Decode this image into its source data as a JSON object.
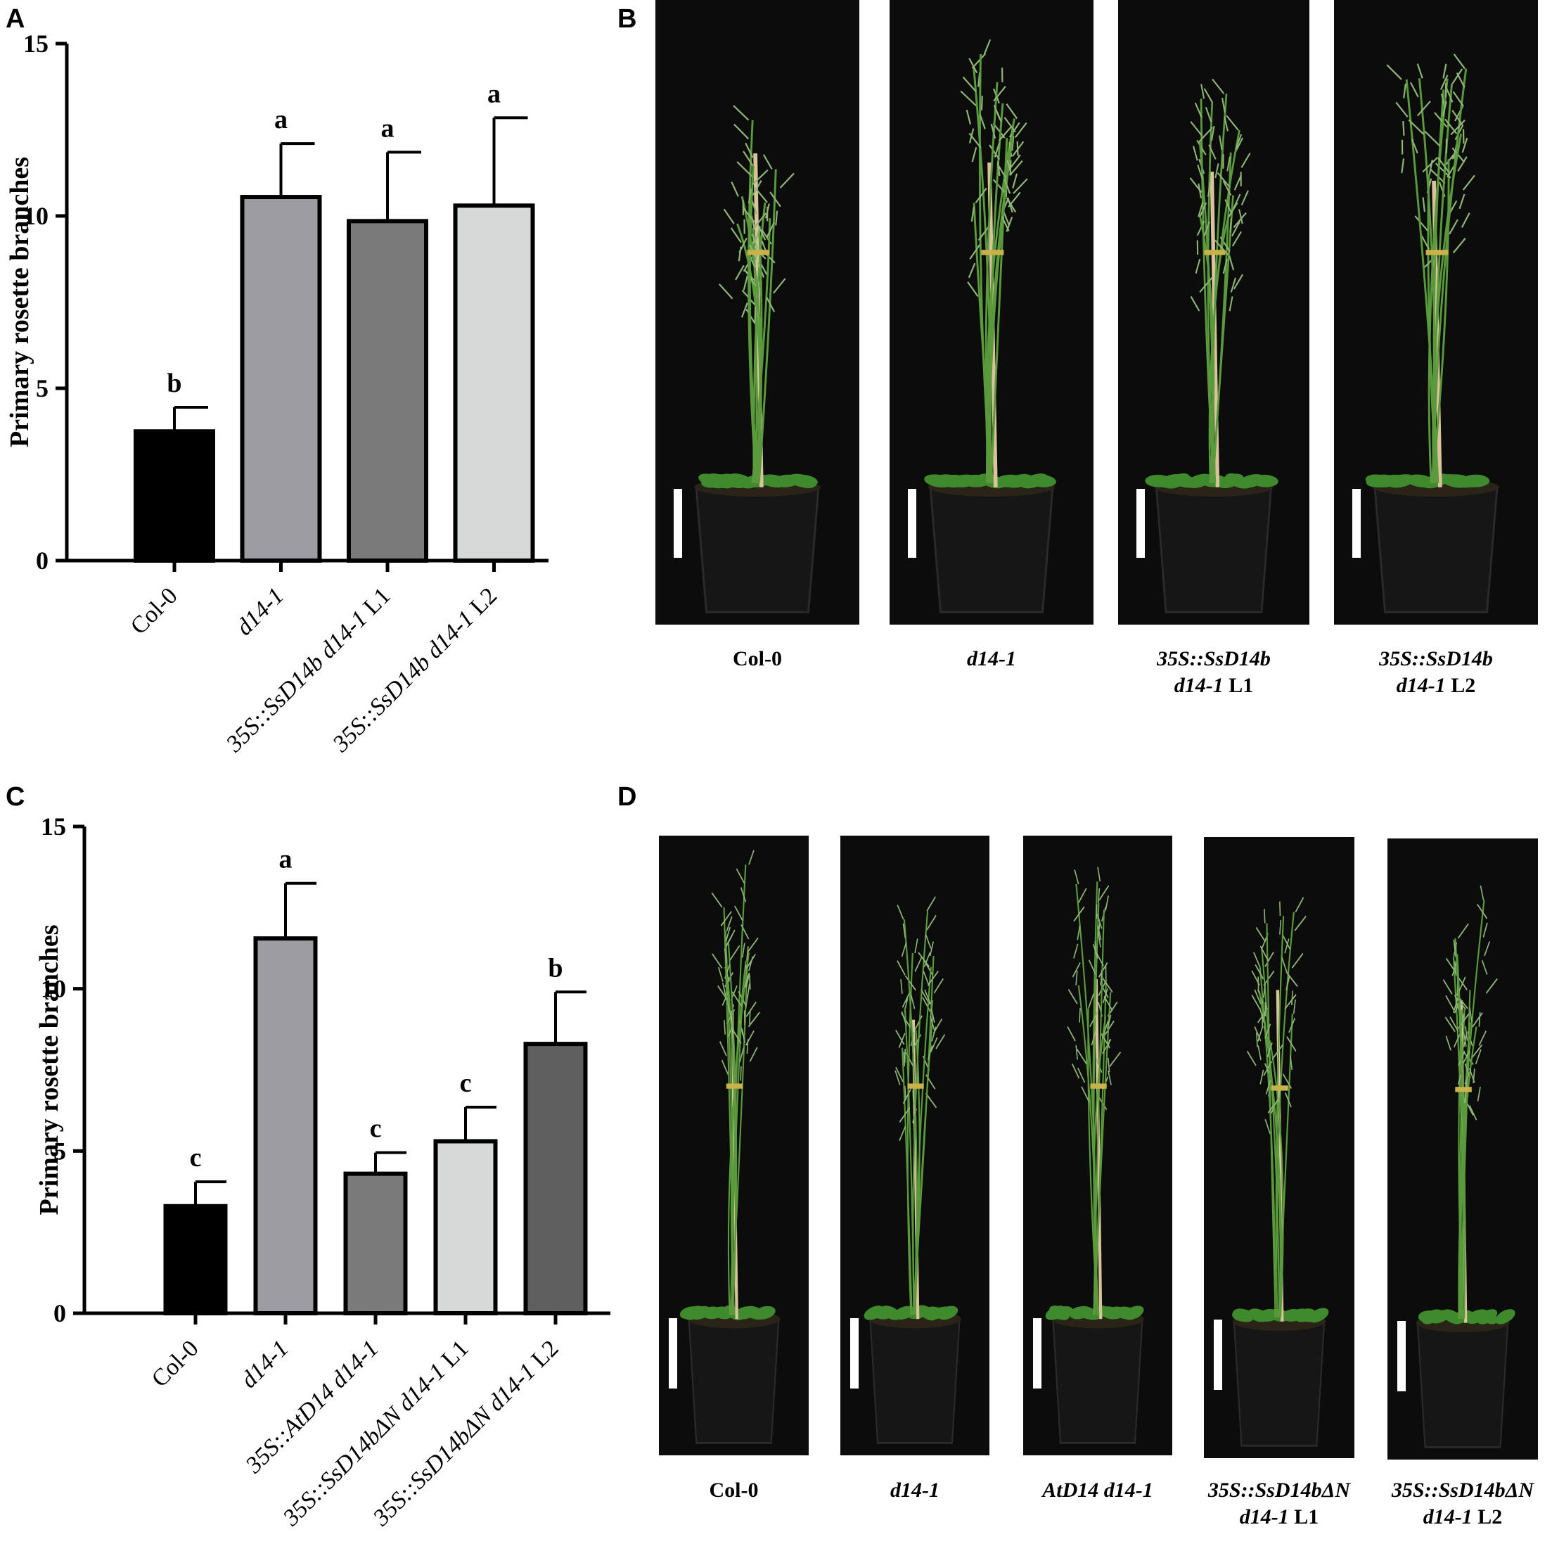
{
  "panels": {
    "A": {
      "letter": "A"
    },
    "B": {
      "letter": "B"
    },
    "C": {
      "letter": "C"
    },
    "D": {
      "letter": "D"
    }
  },
  "chart_data": [
    {
      "type": "bar",
      "panel": "A",
      "ylabel": "Primary rosette branches",
      "ylim": [
        0,
        15
      ],
      "yticks": [
        0,
        5,
        10,
        15
      ],
      "categories": [
        "Col-0",
        "d14-1",
        "35S::SsD14b d14-1 L1",
        "35S::SsD14b d14-1 L2"
      ],
      "category_labels": [
        {
          "italic": "",
          "plain": "Col-0"
        },
        {
          "italic": "d14-1",
          "plain": ""
        },
        {
          "italic": "35S::SsD14b d14-1",
          "plain": " L1"
        },
        {
          "italic": "35S::SsD14b d14-1",
          "plain": " L2"
        }
      ],
      "values": [
        3.75,
        10.55,
        9.85,
        10.3
      ],
      "errors": [
        0.7,
        1.55,
        2.0,
        2.55
      ],
      "significance": [
        "b",
        "a",
        "a",
        "a"
      ],
      "colors": [
        "#000000",
        "#9c9ca2",
        "#7a7a7a",
        "#d7d8d8"
      ]
    },
    {
      "type": "bar",
      "panel": "C",
      "ylabel": "Primary rosette branches",
      "ylim": [
        0,
        15
      ],
      "yticks": [
        0,
        5,
        10,
        15
      ],
      "categories": [
        "Col-0",
        "d14-1",
        "35S::AtD14 d14-1",
        "35S::SsD14bΔN d14-1 L1",
        "35S::SsD14bΔN d14-1 L2"
      ],
      "category_labels": [
        {
          "italic": "",
          "plain": "Col-0"
        },
        {
          "italic": "d14-1",
          "plain": ""
        },
        {
          "italic": "35S::AtD14 d14-1",
          "plain": ""
        },
        {
          "italic": "35S::SsD14bΔN d14-1",
          "plain": " L1"
        },
        {
          "italic": "35S::SsD14bΔN d14-1",
          "plain": " L2"
        }
      ],
      "values": [
        3.3,
        11.55,
        4.3,
        5.3,
        8.3
      ],
      "errors": [
        0.75,
        1.7,
        0.65,
        1.05,
        1.6
      ],
      "significance": [
        "c",
        "a",
        "c",
        "c",
        "b"
      ],
      "colors": [
        "#000000",
        "#9c9ca2",
        "#7a7a7a",
        "#d7d8d8",
        "#5f5f5f"
      ]
    }
  ],
  "photos_B": [
    {
      "italic": "",
      "plain": "Col-0",
      "italic2": "",
      "plain2": ""
    },
    {
      "italic": "d14-1",
      "plain": "",
      "italic2": "",
      "plain2": ""
    },
    {
      "italic": "35S::SsD14b",
      "plain": "",
      "italic2": "d14-1",
      "plain2": " L1"
    },
    {
      "italic": "35S::SsD14b",
      "plain": "",
      "italic2": "d14-1",
      "plain2": " L2"
    }
  ],
  "photos_D": [
    {
      "italic": "",
      "plain": "Col-0",
      "italic2": "",
      "plain2": ""
    },
    {
      "italic": "d14-1",
      "plain": "",
      "italic2": "",
      "plain2": ""
    },
    {
      "italic": "AtD14 d14-1",
      "plain": "",
      "italic2": "",
      "plain2": ""
    },
    {
      "italic": "35S::SsD14bΔN",
      "plain": "",
      "italic2": "d14-1",
      "plain2": " L1"
    },
    {
      "italic": "35S::SsD14bΔN",
      "plain": "",
      "italic2": "d14-1",
      "plain2": " L2"
    }
  ]
}
